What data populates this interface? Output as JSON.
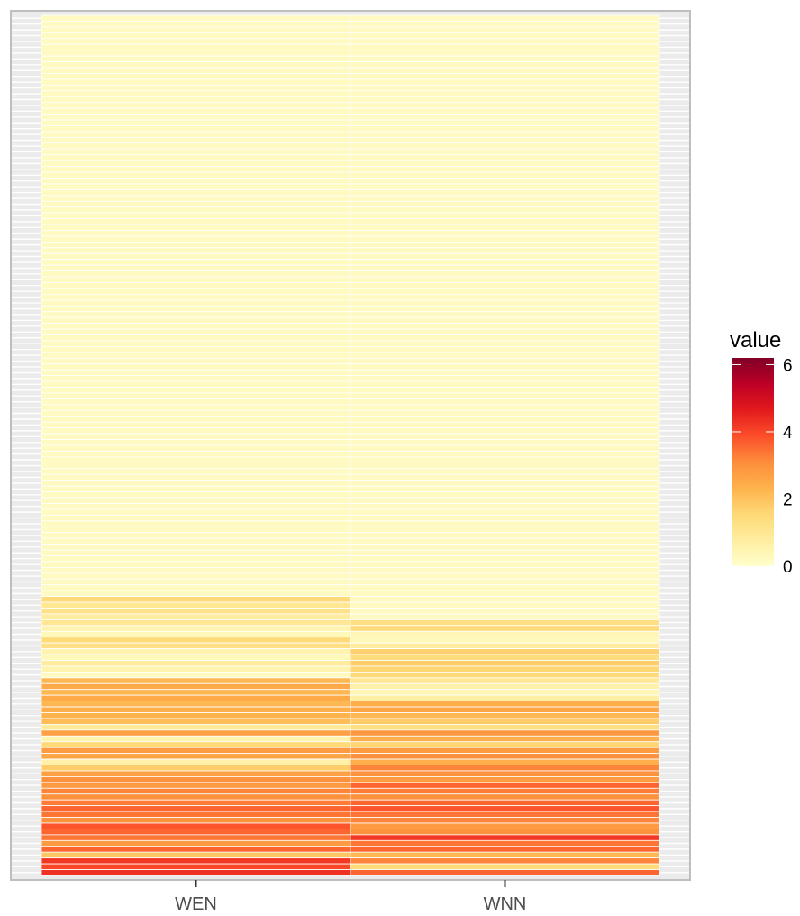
{
  "chart_data": {
    "type": "heatmap",
    "x_categories": [
      "WEN",
      "WNN"
    ],
    "row_count": 148,
    "legend": {
      "title": "value",
      "ticks": [
        0,
        2,
        4,
        6
      ],
      "tick_labels": [
        "0",
        "2",
        "4",
        "6"
      ],
      "range": [
        0,
        6.2
      ],
      "colors": [
        "#ffffcc",
        "#ffeda0",
        "#fed976",
        "#feb24c",
        "#fd8d3c",
        "#fc4e2a",
        "#e31a1c",
        "#bd0026",
        "#800026"
      ]
    },
    "series": [
      {
        "name": "WEN",
        "values": [
          0.2,
          0.2,
          0.2,
          0.2,
          0.2,
          0.2,
          0.2,
          0.2,
          0.2,
          0.2,
          0.2,
          0.2,
          0.2,
          0.2,
          0.2,
          0.2,
          0.2,
          0.2,
          0.2,
          0.2,
          0.2,
          0.2,
          0.2,
          0.2,
          0.2,
          0.2,
          0.2,
          0.2,
          0.2,
          0.2,
          0.2,
          0.2,
          0.2,
          0.2,
          0.2,
          0.2,
          0.2,
          0.2,
          0.2,
          0.2,
          0.2,
          0.2,
          0.2,
          0.2,
          0.2,
          0.2,
          0.2,
          0.2,
          0.2,
          0.2,
          0.2,
          0.2,
          0.2,
          0.2,
          0.2,
          0.2,
          0.2,
          0.2,
          0.2,
          0.2,
          0.2,
          0.2,
          0.2,
          0.2,
          0.2,
          0.2,
          0.2,
          0.2,
          0.2,
          0.2,
          0.2,
          0.2,
          0.2,
          0.2,
          0.2,
          0.2,
          0.2,
          0.2,
          0.2,
          0.2,
          0.2,
          0.2,
          0.2,
          0.2,
          0.2,
          0.2,
          0.2,
          0.2,
          0.2,
          0.2,
          0.2,
          0.2,
          0.2,
          0.2,
          0.2,
          0.2,
          0.2,
          0.2,
          0.2,
          0.2,
          1.5,
          1.0,
          1.2,
          0.8,
          1.0,
          0.5,
          0.3,
          1.5,
          1.3,
          0.5,
          0.3,
          0.8,
          0.5,
          0.2,
          2.2,
          2.5,
          2.2,
          2.5,
          2.2,
          2.4,
          2.3,
          2.1,
          0.9,
          2.7,
          0.5,
          1.5,
          2.8,
          2.6,
          0.6,
          1.8,
          2.7,
          3.0,
          2.8,
          3.2,
          3.0,
          3.3,
          3.6,
          3.4,
          3.0,
          3.8,
          3.6,
          3.4,
          2.8,
          3.6,
          1.9,
          4.2,
          4.0,
          4.3
        ]
      },
      {
        "name": "WNN",
        "values": [
          0.2,
          0.2,
          0.2,
          0.2,
          0.2,
          0.2,
          0.2,
          0.2,
          0.2,
          0.2,
          0.2,
          0.2,
          0.2,
          0.2,
          0.2,
          0.2,
          0.2,
          0.2,
          0.2,
          0.2,
          0.2,
          0.2,
          0.2,
          0.2,
          0.2,
          0.2,
          0.2,
          0.2,
          0.2,
          0.2,
          0.2,
          0.2,
          0.2,
          0.2,
          0.2,
          0.2,
          0.2,
          0.2,
          0.2,
          0.2,
          0.2,
          0.2,
          0.2,
          0.2,
          0.2,
          0.2,
          0.2,
          0.2,
          0.2,
          0.2,
          0.2,
          0.2,
          0.2,
          0.2,
          0.2,
          0.2,
          0.2,
          0.2,
          0.2,
          0.2,
          0.2,
          0.2,
          0.2,
          0.2,
          0.2,
          0.2,
          0.2,
          0.2,
          0.2,
          0.2,
          0.2,
          0.2,
          0.2,
          0.2,
          0.2,
          0.2,
          0.2,
          0.2,
          0.2,
          0.2,
          0.2,
          0.2,
          0.2,
          0.2,
          0.2,
          0.2,
          0.2,
          0.2,
          0.2,
          0.2,
          0.2,
          0.2,
          0.2,
          0.2,
          0.2,
          0.2,
          0.2,
          0.2,
          0.2,
          0.2,
          0.2,
          0.2,
          0.2,
          0.2,
          1.3,
          1.5,
          0.4,
          0.3,
          0.8,
          1.7,
          1.4,
          1.8,
          1.6,
          1.5,
          1.0,
          0.6,
          0.4,
          0.7,
          2.4,
          2.6,
          2.2,
          1.8,
          1.3,
          2.9,
          2.4,
          1.6,
          2.8,
          3.0,
          2.4,
          3.2,
          3.0,
          2.8,
          3.6,
          3.3,
          3.0,
          3.6,
          3.8,
          3.4,
          3.2,
          2.8,
          3.0,
          4.2,
          3.4,
          3.6,
          2.2,
          3.2,
          1.5,
          3.6
        ]
      }
    ]
  }
}
